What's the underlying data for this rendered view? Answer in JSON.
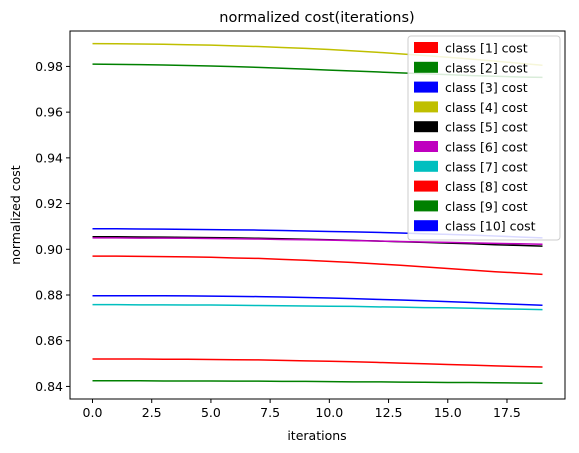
{
  "chart_data": {
    "type": "line",
    "title": "normalized cost(iterations)",
    "xlabel": "iterations",
    "ylabel": "normalized cost",
    "xlim": [
      -0.95,
      19.95
    ],
    "ylim": [
      0.8345,
      0.9955
    ],
    "xticks": [
      0.0,
      2.5,
      5.0,
      7.5,
      10.0,
      12.5,
      15.0,
      17.5
    ],
    "xtick_labels": [
      "0.0",
      "2.5",
      "5.0",
      "7.5",
      "10.0",
      "12.5",
      "15.0",
      "17.5"
    ],
    "yticks": [
      0.84,
      0.86,
      0.88,
      0.9,
      0.92,
      0.94,
      0.96,
      0.98
    ],
    "ytick_labels": [
      "0.84",
      "0.86",
      "0.88",
      "0.90",
      "0.92",
      "0.94",
      "0.96",
      "0.98"
    ],
    "grid": false,
    "legend_position": "top-right",
    "x": [
      0,
      1,
      2,
      3,
      4,
      5,
      6,
      7,
      8,
      9,
      10,
      11,
      12,
      13,
      14,
      15,
      16,
      17,
      18,
      19
    ],
    "series": [
      {
        "name": "class [1] cost",
        "color": "#ff0000",
        "values": [
          0.897,
          0.897,
          0.8969,
          0.8968,
          0.8967,
          0.8965,
          0.8962,
          0.896,
          0.8956,
          0.8952,
          0.8947,
          0.8942,
          0.8936,
          0.893,
          0.8923,
          0.8916,
          0.8909,
          0.8902,
          0.8896,
          0.889
        ]
      },
      {
        "name": "class [2] cost",
        "color": "#008000",
        "values": [
          0.981,
          0.9809,
          0.9808,
          0.9806,
          0.9804,
          0.9802,
          0.9799,
          0.9796,
          0.9792,
          0.9788,
          0.9784,
          0.978,
          0.9776,
          0.9772,
          0.9768,
          0.9764,
          0.976,
          0.9757,
          0.9754,
          0.9752
        ]
      },
      {
        "name": "class [3] cost",
        "color": "#0000ff",
        "values": [
          0.909,
          0.909,
          0.9089,
          0.9088,
          0.9087,
          0.9086,
          0.9085,
          0.9084,
          0.9082,
          0.908,
          0.9078,
          0.9076,
          0.9074,
          0.9071,
          0.9068,
          0.9065,
          0.9062,
          0.9058,
          0.9054,
          0.905
        ]
      },
      {
        "name": "class [4] cost",
        "color": "#bfbf00",
        "values": [
          0.99,
          0.9899,
          0.9898,
          0.9897,
          0.9895,
          0.9893,
          0.989,
          0.9887,
          0.9883,
          0.9879,
          0.9874,
          0.9868,
          0.9862,
          0.9855,
          0.9848,
          0.984,
          0.9832,
          0.9823,
          0.9814,
          0.9805
        ]
      },
      {
        "name": "class [5] cost",
        "color": "#000000",
        "values": [
          0.9055,
          0.9055,
          0.9054,
          0.9053,
          0.9052,
          0.9051,
          0.905,
          0.9048,
          0.9046,
          0.9044,
          0.9042,
          0.9039,
          0.9036,
          0.9033,
          0.903,
          0.9027,
          0.9024,
          0.902,
          0.9017,
          0.9014
        ]
      },
      {
        "name": "class [6] cost",
        "color": "#bf00bf",
        "values": [
          0.905,
          0.905,
          0.9049,
          0.9049,
          0.9048,
          0.9047,
          0.9046,
          0.9045,
          0.9043,
          0.9042,
          0.904,
          0.9038,
          0.9036,
          0.9034,
          0.9032,
          0.903,
          0.9028,
          0.9026,
          0.9024,
          0.9022
        ]
      },
      {
        "name": "class [7] cost",
        "color": "#00bfbf",
        "values": [
          0.8758,
          0.8758,
          0.8757,
          0.8757,
          0.8756,
          0.8756,
          0.8755,
          0.8754,
          0.8753,
          0.8752,
          0.8751,
          0.875,
          0.8748,
          0.8747,
          0.8745,
          0.8744,
          0.8742,
          0.874,
          0.8738,
          0.8736
        ]
      },
      {
        "name": "class [8] cost",
        "color": "#ff0000",
        "values": [
          0.852,
          0.852,
          0.852,
          0.8519,
          0.8519,
          0.8518,
          0.8517,
          0.8516,
          0.8514,
          0.8512,
          0.851,
          0.8508,
          0.8505,
          0.8502,
          0.8499,
          0.8496,
          0.8493,
          0.849,
          0.8487,
          0.8485
        ]
      },
      {
        "name": "class [9] cost",
        "color": "#008000",
        "values": [
          0.8425,
          0.8425,
          0.8425,
          0.8424,
          0.8424,
          0.8424,
          0.8423,
          0.8423,
          0.8422,
          0.8422,
          0.8421,
          0.842,
          0.842,
          0.8419,
          0.8418,
          0.8417,
          0.8417,
          0.8416,
          0.8415,
          0.8414
        ]
      },
      {
        "name": "class [10] cost",
        "color": "#0000ff",
        "values": [
          0.8797,
          0.8797,
          0.8797,
          0.8797,
          0.8796,
          0.8795,
          0.8794,
          0.8793,
          0.8791,
          0.8789,
          0.8787,
          0.8784,
          0.8781,
          0.8778,
          0.8775,
          0.8771,
          0.8767,
          0.8763,
          0.8759,
          0.8755
        ]
      }
    ]
  }
}
